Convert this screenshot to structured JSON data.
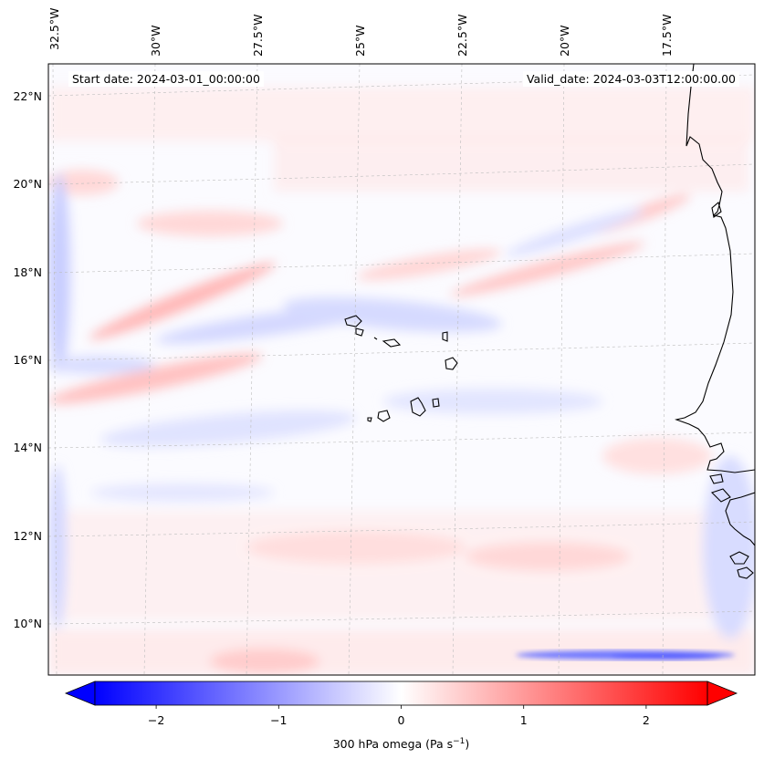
{
  "map": {
    "type": "contour-field",
    "field": "300 hPa omega",
    "start_date_text": "Start date: 2024-03-01_00:00:00",
    "valid_date_text": "Valid_date: 2024-03-03T12:00:00.00",
    "lon_ticks": [
      "32.5°W",
      "30°W",
      "27.5°W",
      "25°W",
      "22.5°W",
      "20°W",
      "17.5°W"
    ],
    "lat_ticks": [
      "22°N",
      "20°N",
      "18°N",
      "16°N",
      "14°N",
      "12°N",
      "10°N"
    ],
    "features": [
      "cape-verde-islands",
      "west-africa-coastline"
    ]
  },
  "colorbar": {
    "label": "300 hPa omega (Pa s",
    "label_sup": "−1",
    "label_end": ")",
    "ticks": [
      "−2",
      "−1",
      "0",
      "1",
      "2"
    ],
    "tick_values": [
      -2,
      -1,
      0,
      1,
      2
    ],
    "range": [
      -2.5,
      2.5
    ],
    "cmap": "bwr",
    "colors": {
      "low": "#0000ff",
      "mid": "#ffffff",
      "high": "#ff0000"
    }
  }
}
